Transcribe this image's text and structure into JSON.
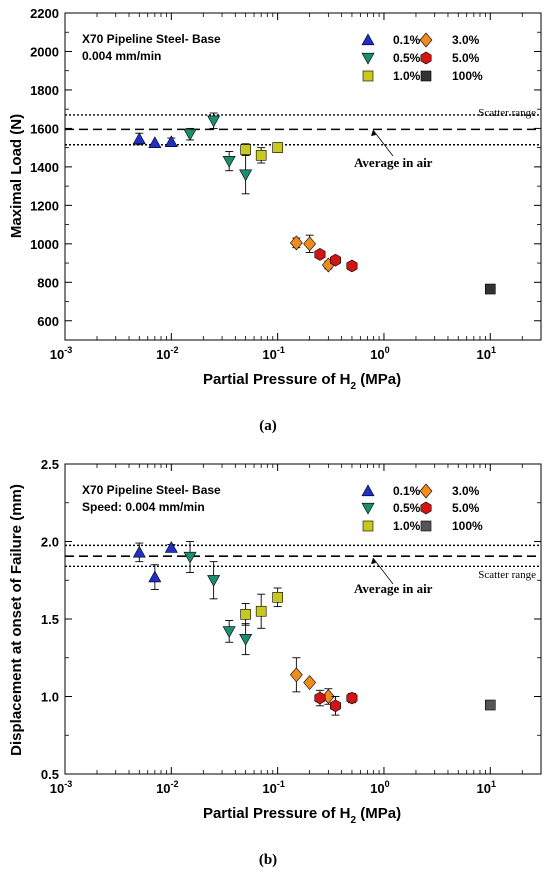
{
  "chart_data": [
    {
      "type": "scatter",
      "panel_label": "(a)",
      "title_line1": "X70 Pipeline Steel- Base",
      "title_line2": "0.004 mm/min",
      "xlabel": "Partial Pressure of H",
      "xlabel_sub": "2",
      "xlabel_unit": " (MPa)",
      "ylabel": "Maximal Load (N)",
      "xscale": "log",
      "xlim": [
        0.001,
        30
      ],
      "ylim": [
        500,
        2200
      ],
      "y_ticks": [
        600,
        800,
        1000,
        1200,
        1400,
        1600,
        1800,
        2000,
        2200
      ],
      "x_tick_labels": [
        {
          "base": "10",
          "exp": "-3"
        },
        {
          "base": "10",
          "exp": "-2"
        },
        {
          "base": "10",
          "exp": "-1"
        },
        {
          "base": "10",
          "exp": "0"
        },
        {
          "base": "10",
          "exp": "1"
        }
      ],
      "reference_lines": {
        "average": 1595,
        "scatter_upper": 1670,
        "scatter_lower": 1515
      },
      "annotations": {
        "average": "Average in air",
        "scatter": "Scatter range"
      },
      "legend_position": "top-right",
      "series": [
        {
          "name": "0.1%",
          "marker": "triangle-up",
          "color": "#1f2fc8",
          "points": [
            {
              "x": 0.005,
              "y": 1545,
              "err": 30
            },
            {
              "x": 0.007,
              "y": 1525,
              "err": 0
            },
            {
              "x": 0.01,
              "y": 1530,
              "err": 20
            }
          ]
        },
        {
          "name": "0.5%",
          "marker": "triangle-down",
          "color": "#1e8c6e",
          "points": [
            {
              "x": 0.015,
              "y": 1570,
              "err": 30
            },
            {
              "x": 0.025,
              "y": 1640,
              "err": 40
            },
            {
              "x": 0.035,
              "y": 1430,
              "err": 50
            },
            {
              "x": 0.05,
              "y": 1360,
              "err": 100
            }
          ]
        },
        {
          "name": "1.0%",
          "marker": "square",
          "color": "#c8c81e",
          "points": [
            {
              "x": 0.05,
              "y": 1490,
              "err": 30
            },
            {
              "x": 0.07,
              "y": 1460,
              "err": 40
            },
            {
              "x": 0.1,
              "y": 1500,
              "err": 25
            }
          ]
        },
        {
          "name": "3.0%",
          "marker": "diamond",
          "color": "#f08c1e",
          "points": [
            {
              "x": 0.15,
              "y": 1005,
              "err": 25
            },
            {
              "x": 0.2,
              "y": 1000,
              "err": 45
            },
            {
              "x": 0.3,
              "y": 890,
              "err": 20
            }
          ]
        },
        {
          "name": "5.0%",
          "marker": "hexagon",
          "color": "#d21414",
          "points": [
            {
              "x": 0.25,
              "y": 945,
              "err": 0
            },
            {
              "x": 0.35,
              "y": 915,
              "err": 20
            },
            {
              "x": 0.5,
              "y": 885,
              "err": 0
            }
          ]
        },
        {
          "name": "100%",
          "marker": "square",
          "color": "#333333",
          "points": [
            {
              "x": 10,
              "y": 765,
              "err": 0
            }
          ]
        }
      ]
    },
    {
      "type": "scatter",
      "panel_label": "(b)",
      "title_line1": "X70 Pipeline Steel- Base",
      "title_line2": "Speed: 0.004 mm/min",
      "xlabel": "Partial Pressure of H",
      "xlabel_sub": "2",
      "xlabel_unit": " (MPa)",
      "ylabel": "Displacement at onset of Failure (mm)",
      "xscale": "log",
      "xlim": [
        0.001,
        30
      ],
      "ylim": [
        0.5,
        2.5
      ],
      "y_ticks": [
        0.5,
        1.0,
        1.5,
        2.0,
        2.5
      ],
      "y_tick_labels": [
        "0.5",
        "1.0",
        "1.5",
        "2.0",
        "2.5"
      ],
      "x_tick_labels": [
        {
          "base": "10",
          "exp": "-3"
        },
        {
          "base": "10",
          "exp": "-2"
        },
        {
          "base": "10",
          "exp": "-1"
        },
        {
          "base": "10",
          "exp": "0"
        },
        {
          "base": "10",
          "exp": "1"
        }
      ],
      "reference_lines": {
        "average": 1.905,
        "scatter_upper": 1.975,
        "scatter_lower": 1.84
      },
      "annotations": {
        "average": "Average in air",
        "scatter": "Scatter range"
      },
      "legend_position": "top-right",
      "series": [
        {
          "name": "0.1%",
          "marker": "triangle-up",
          "color": "#1f2fc8",
          "points": [
            {
              "x": 0.005,
              "y": 1.93,
              "err": 0.06
            },
            {
              "x": 0.007,
              "y": 1.77,
              "err": 0.08
            },
            {
              "x": 0.01,
              "y": 1.96,
              "err": 0.02
            }
          ]
        },
        {
          "name": "0.5%",
          "marker": "triangle-down",
          "color": "#1e8c6e",
          "points": [
            {
              "x": 0.015,
              "y": 1.9,
              "err": 0.1
            },
            {
              "x": 0.025,
              "y": 1.75,
              "err": 0.12
            },
            {
              "x": 0.035,
              "y": 1.42,
              "err": 0.07
            },
            {
              "x": 0.05,
              "y": 1.37,
              "err": 0.1
            }
          ]
        },
        {
          "name": "1.0%",
          "marker": "square",
          "color": "#c8c81e",
          "points": [
            {
              "x": 0.05,
              "y": 1.53,
              "err": 0.07
            },
            {
              "x": 0.07,
              "y": 1.55,
              "err": 0.11
            },
            {
              "x": 0.1,
              "y": 1.64,
              "err": 0.06
            }
          ]
        },
        {
          "name": "3.0%",
          "marker": "diamond",
          "color": "#f08c1e",
          "points": [
            {
              "x": 0.15,
              "y": 1.14,
              "err": 0.11
            },
            {
              "x": 0.2,
              "y": 1.09,
              "err": 0.0
            },
            {
              "x": 0.3,
              "y": 1.0,
              "err": 0.05
            }
          ]
        },
        {
          "name": "5.0%",
          "marker": "hexagon",
          "color": "#d21414",
          "points": [
            {
              "x": 0.25,
              "y": 0.99,
              "err": 0.05
            },
            {
              "x": 0.35,
              "y": 0.94,
              "err": 0.06
            },
            {
              "x": 0.5,
              "y": 0.99,
              "err": 0.03
            }
          ]
        },
        {
          "name": "100%",
          "marker": "square",
          "color": "#555555",
          "points": [
            {
              "x": 10,
              "y": 0.945,
              "err": 0
            }
          ]
        }
      ]
    }
  ]
}
